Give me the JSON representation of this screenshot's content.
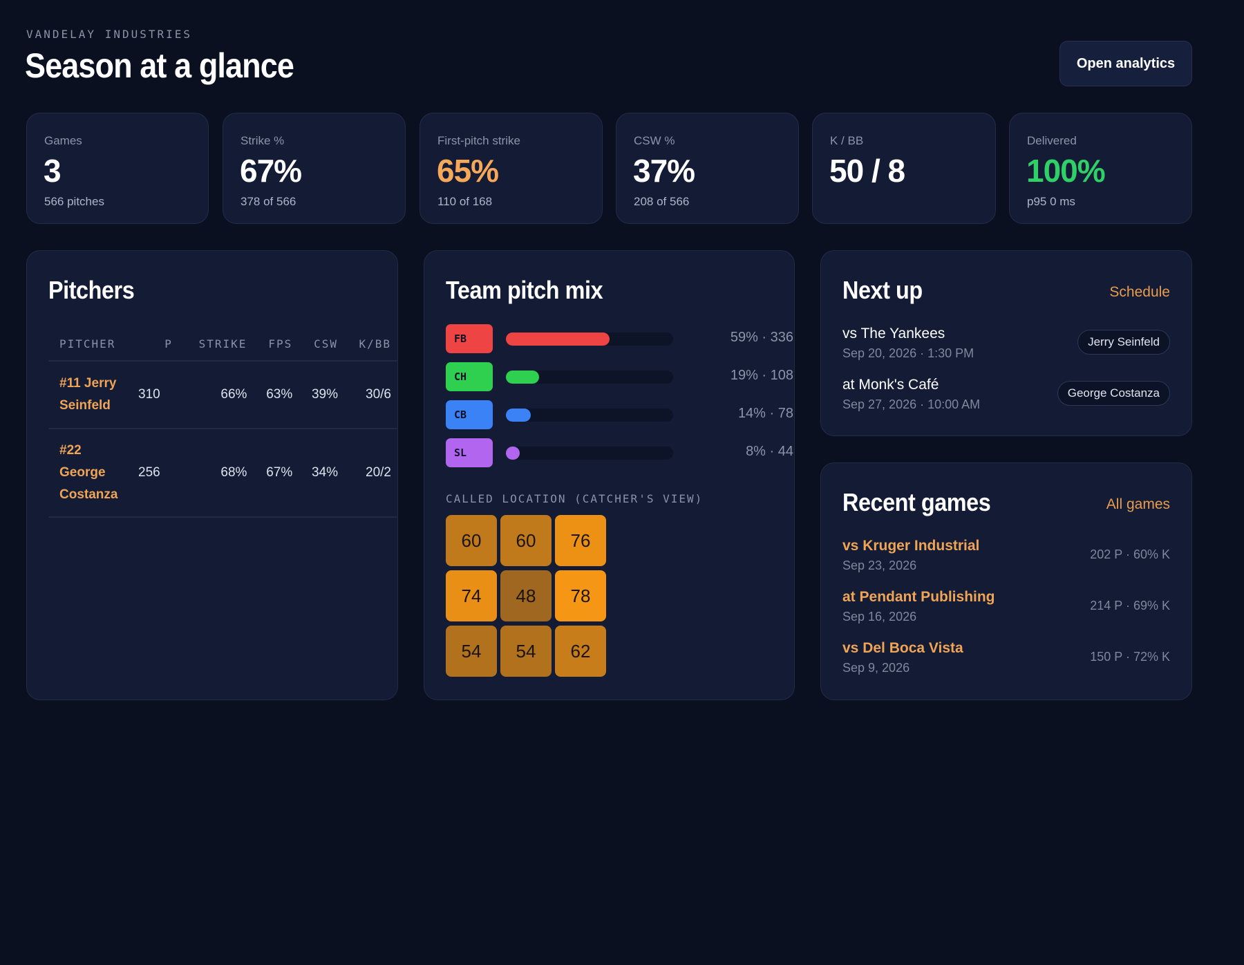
{
  "header": {
    "org": "VANDELAY INDUSTRIES",
    "title": "Season at a glance",
    "action_label": "Open analytics"
  },
  "stats": [
    {
      "label": "Games",
      "value": "3",
      "sub": "566 pitches"
    },
    {
      "label": "Strike %",
      "value": "67%",
      "sub": "378 of 566"
    },
    {
      "label": "First-pitch strike",
      "value": "65%",
      "sub": "110 of 168"
    },
    {
      "label": "CSW %",
      "value": "37%",
      "sub": "208 of 566"
    },
    {
      "label": "K / BB",
      "value": "50 / 8",
      "sub": ""
    },
    {
      "label": "Delivered",
      "value": "100%",
      "sub": "p95 0 ms"
    }
  ],
  "pitchers": {
    "title": "Pitchers",
    "columns": [
      "PITCHER",
      "P",
      "STRIKE",
      "FPS",
      "CSW",
      "K/BB"
    ],
    "rows": [
      {
        "name": "#11 Jerry Seinfeld",
        "p": "310",
        "strike": "66%",
        "fps": "63%",
        "csw": "39%",
        "kbb": "30/6"
      },
      {
        "name": "#22 George Costanza",
        "p": "256",
        "strike": "68%",
        "fps": "67%",
        "csw": "34%",
        "kbb": "20/2"
      }
    ]
  },
  "pitch_mix": {
    "title": "Team pitch mix",
    "items": [
      {
        "code": "FB",
        "share": 0.59,
        "label": "59% · 336",
        "color": "#ef4444"
      },
      {
        "code": "CH",
        "share": 0.19,
        "label": "19% · 108",
        "color": "#2fd050"
      },
      {
        "code": "CB",
        "share": 0.14,
        "label": "14% · 78",
        "color": "#3b82f6"
      },
      {
        "code": "SL",
        "share": 0.08,
        "label": "8% · 44",
        "color": "#b266f0"
      }
    ],
    "location_label": "CALLED LOCATION (CATCHER'S VIEW)",
    "zones": [
      "60",
      "60",
      "76",
      "74",
      "48",
      "78",
      "54",
      "54",
      "62"
    ]
  },
  "next_up": {
    "title": "Next up",
    "link": "Schedule",
    "games": [
      {
        "opponent": "vs The Yankees",
        "date": "Sep 20, 2026 · 1:30 PM",
        "pitcher": "Jerry Seinfeld"
      },
      {
        "opponent": "at Monk's Café",
        "date": "Sep 27, 2026 · 10:00 AM",
        "pitcher": "George Costanza"
      }
    ]
  },
  "recent_games": {
    "title": "Recent games",
    "link": "All games",
    "games": [
      {
        "opponent": "vs Kruger Industrial",
        "date": "Sep 23, 2026",
        "stat": "202 P · 60% K"
      },
      {
        "opponent": "at Pendant Publishing",
        "date": "Sep 16, 2026",
        "stat": "214 P · 69% K"
      },
      {
        "opponent": "vs Del Boca Vista",
        "date": "Sep 9, 2026",
        "stat": "150 P · 72% K"
      }
    ]
  }
}
